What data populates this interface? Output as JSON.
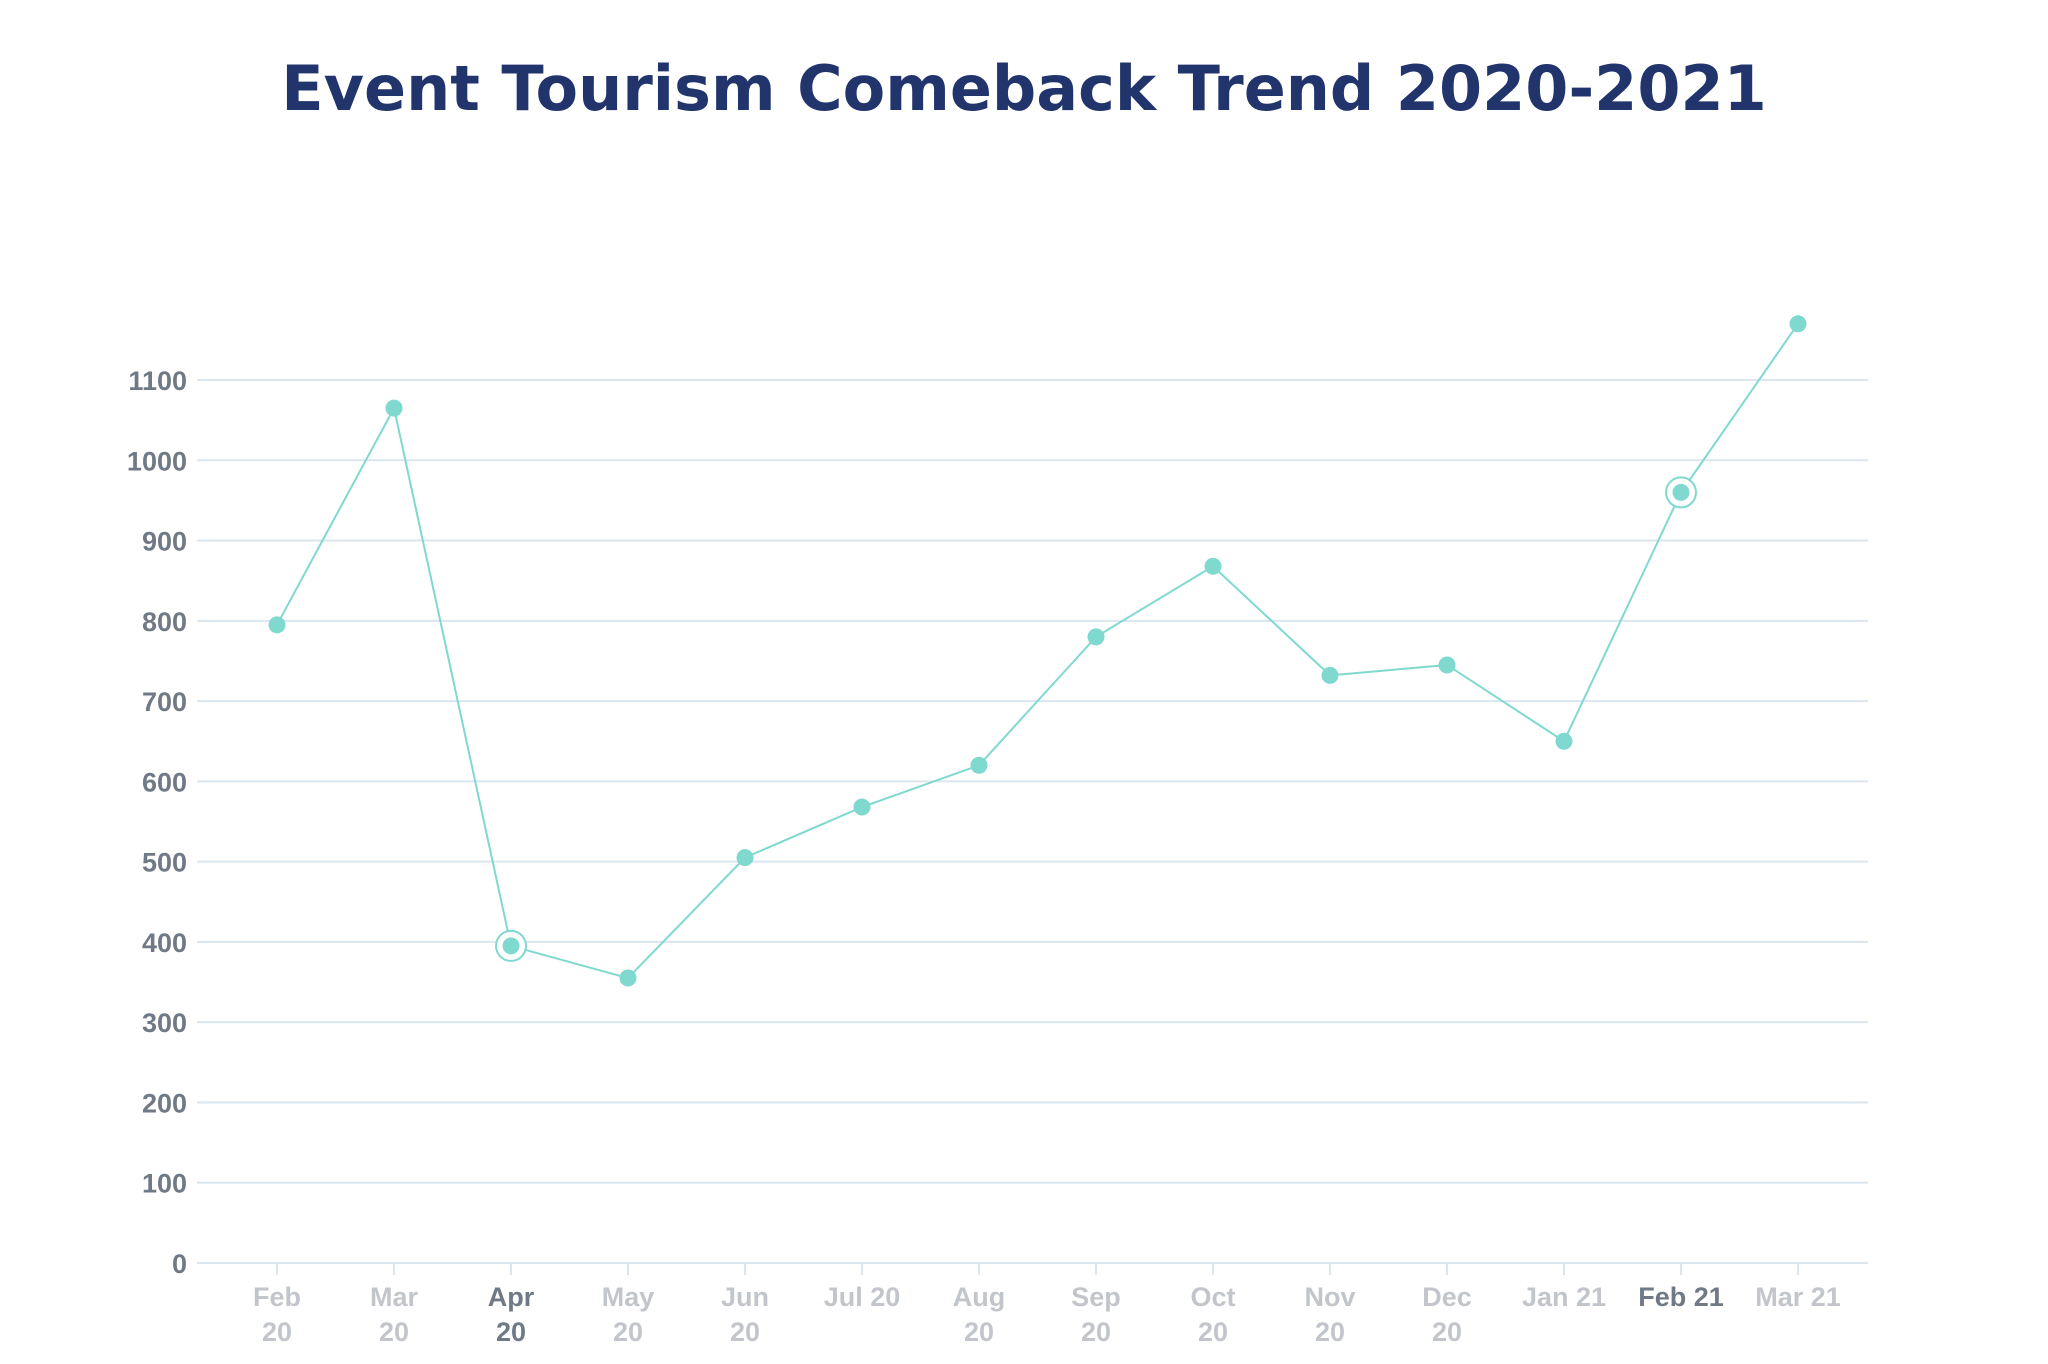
{
  "title": "Event Tourism Comeback Trend 2020-2021",
  "colors": {
    "title": "#22346c",
    "line": "#7fd9cf",
    "point": "#7fd9cf",
    "grid": "#dbe6ef",
    "axis_label": "#707a86",
    "axis_label_muted": "#c2c6cc"
  },
  "chart_data": {
    "type": "line",
    "title": "Event Tourism Comeback Trend 2020-2021",
    "xlabel": "",
    "ylabel": "",
    "ylim": [
      0,
      1100
    ],
    "yticks": [
      0,
      100,
      200,
      300,
      400,
      500,
      600,
      700,
      800,
      900,
      1000,
      1100
    ],
    "grid": true,
    "legend": "none",
    "categories": [
      {
        "line1": "Feb",
        "line2": "20"
      },
      {
        "line1": "Mar",
        "line2": "20"
      },
      {
        "line1": "Apr",
        "line2": "20"
      },
      {
        "line1": "May",
        "line2": "20"
      },
      {
        "line1": "Jun",
        "line2": "20"
      },
      {
        "line1": "Jul 20",
        "line2": ""
      },
      {
        "line1": "Aug",
        "line2": "20"
      },
      {
        "line1": "Sep",
        "line2": "20"
      },
      {
        "line1": "Oct",
        "line2": "20"
      },
      {
        "line1": "Nov",
        "line2": "20"
      },
      {
        "line1": "Dec",
        "line2": "20"
      },
      {
        "line1": "Jan 21",
        "line2": ""
      },
      {
        "line1": "Feb 21",
        "line2": ""
      },
      {
        "line1": "Mar 21",
        "line2": ""
      }
    ],
    "series": [
      {
        "values": [
          795,
          1065,
          395,
          355,
          505,
          568,
          620,
          780,
          868,
          732,
          745,
          650,
          960,
          1170
        ]
      }
    ],
    "highlighted_indices": [
      2,
      12
    ]
  }
}
